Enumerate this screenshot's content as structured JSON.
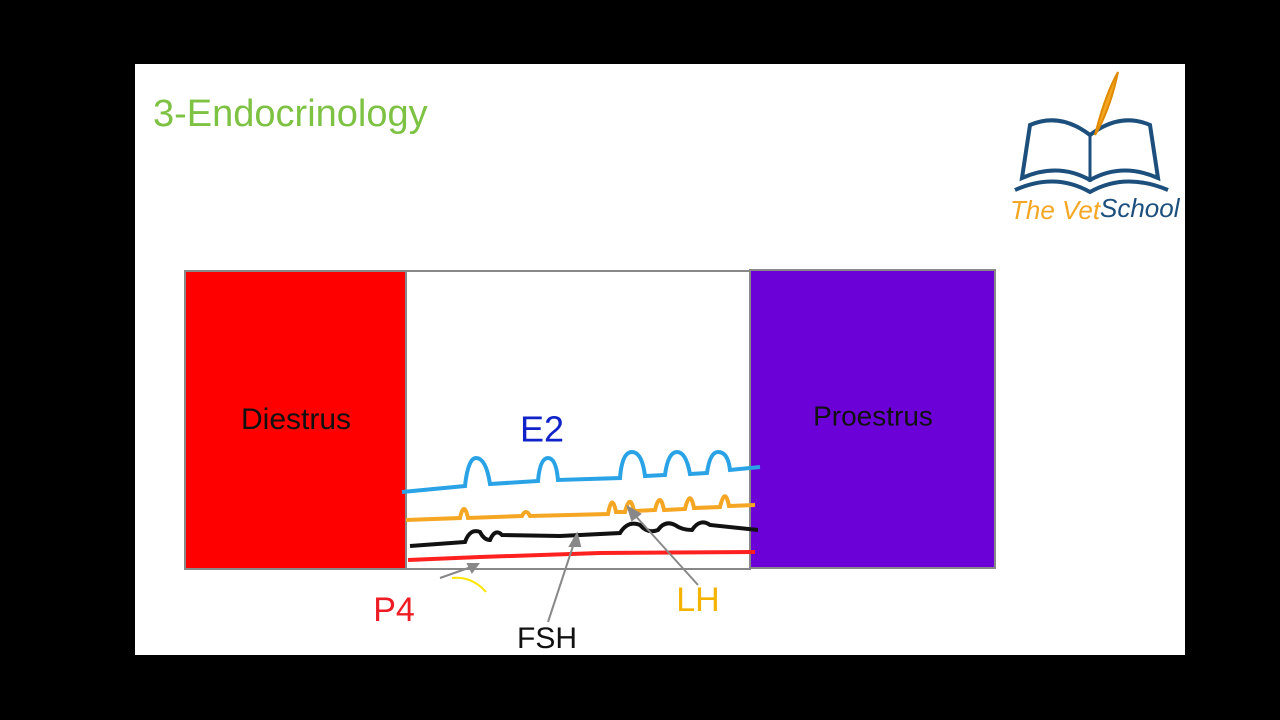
{
  "header": {
    "title": "3-Endocrinology"
  },
  "logo": {
    "part1": "The Vet",
    "part2": "School"
  },
  "phases": [
    {
      "label": "Diestrus"
    },
    {
      "label": "Proestrus"
    }
  ],
  "hormones": [
    {
      "label": "E2"
    },
    {
      "label": "P4"
    },
    {
      "label": "FSH"
    },
    {
      "label": "LH"
    }
  ]
}
